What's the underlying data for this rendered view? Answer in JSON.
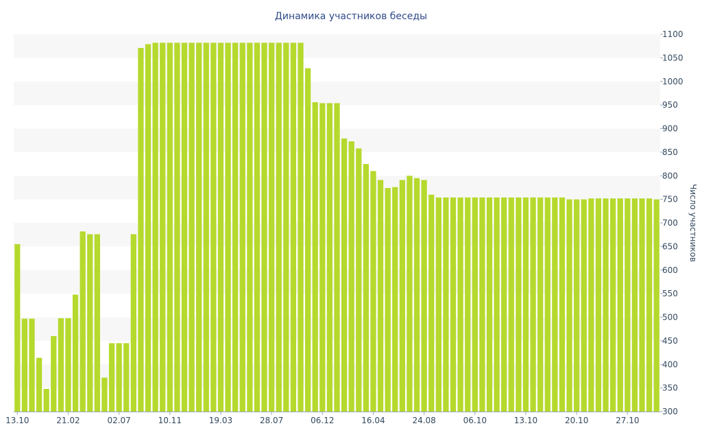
{
  "chart_data": {
    "type": "bar",
    "title": "Динамика участников беседы",
    "xlabel": "",
    "ylabel": "Число участников",
    "ylim": [
      300,
      1100
    ],
    "y_ticks": [
      300,
      350,
      400,
      450,
      500,
      550,
      600,
      650,
      700,
      750,
      800,
      850,
      900,
      950,
      1000,
      1050,
      1100
    ],
    "y_axis_side": "right",
    "x_tick_labels": [
      {
        "label": "13.10",
        "index": 0
      },
      {
        "label": "21.02",
        "index": 7
      },
      {
        "label": "02.07",
        "index": 14
      },
      {
        "label": "10.11",
        "index": 21
      },
      {
        "label": "19.03",
        "index": 28
      },
      {
        "label": "28.07",
        "index": 35
      },
      {
        "label": "06.12",
        "index": 42
      },
      {
        "label": "16.04",
        "index": 49
      },
      {
        "label": "24.08",
        "index": 56
      },
      {
        "label": "06.10",
        "index": 63
      },
      {
        "label": "13.10",
        "index": 70
      },
      {
        "label": "20.10",
        "index": 77
      },
      {
        "label": "27.10",
        "index": 84
      }
    ],
    "grid": "alternating horizontal bands",
    "legend": "none",
    "colors": {
      "bar": "#b5d92c",
      "band": "#f7f7f7",
      "title": "#2f4a8a",
      "axis_text": "#34495e"
    },
    "values": [
      655,
      497,
      497,
      414,
      348,
      460,
      498,
      498,
      548,
      682,
      676,
      676,
      372,
      445,
      445,
      445,
      676,
      1071,
      1079,
      1082,
      1082,
      1082,
      1082,
      1082,
      1082,
      1082,
      1082,
      1082,
      1082,
      1082,
      1082,
      1082,
      1082,
      1082,
      1082,
      1082,
      1082,
      1082,
      1082,
      1082,
      1028,
      956,
      954,
      954,
      954,
      879,
      873,
      858,
      825,
      810,
      791,
      774,
      776,
      791,
      800,
      795,
      791,
      760,
      754,
      754,
      754,
      754,
      754,
      754,
      754,
      754,
      754,
      754,
      754,
      754,
      754,
      754,
      754,
      754,
      754,
      754,
      750,
      750,
      750,
      752,
      752,
      752,
      752,
      752,
      752,
      752,
      752,
      752,
      750
    ]
  }
}
